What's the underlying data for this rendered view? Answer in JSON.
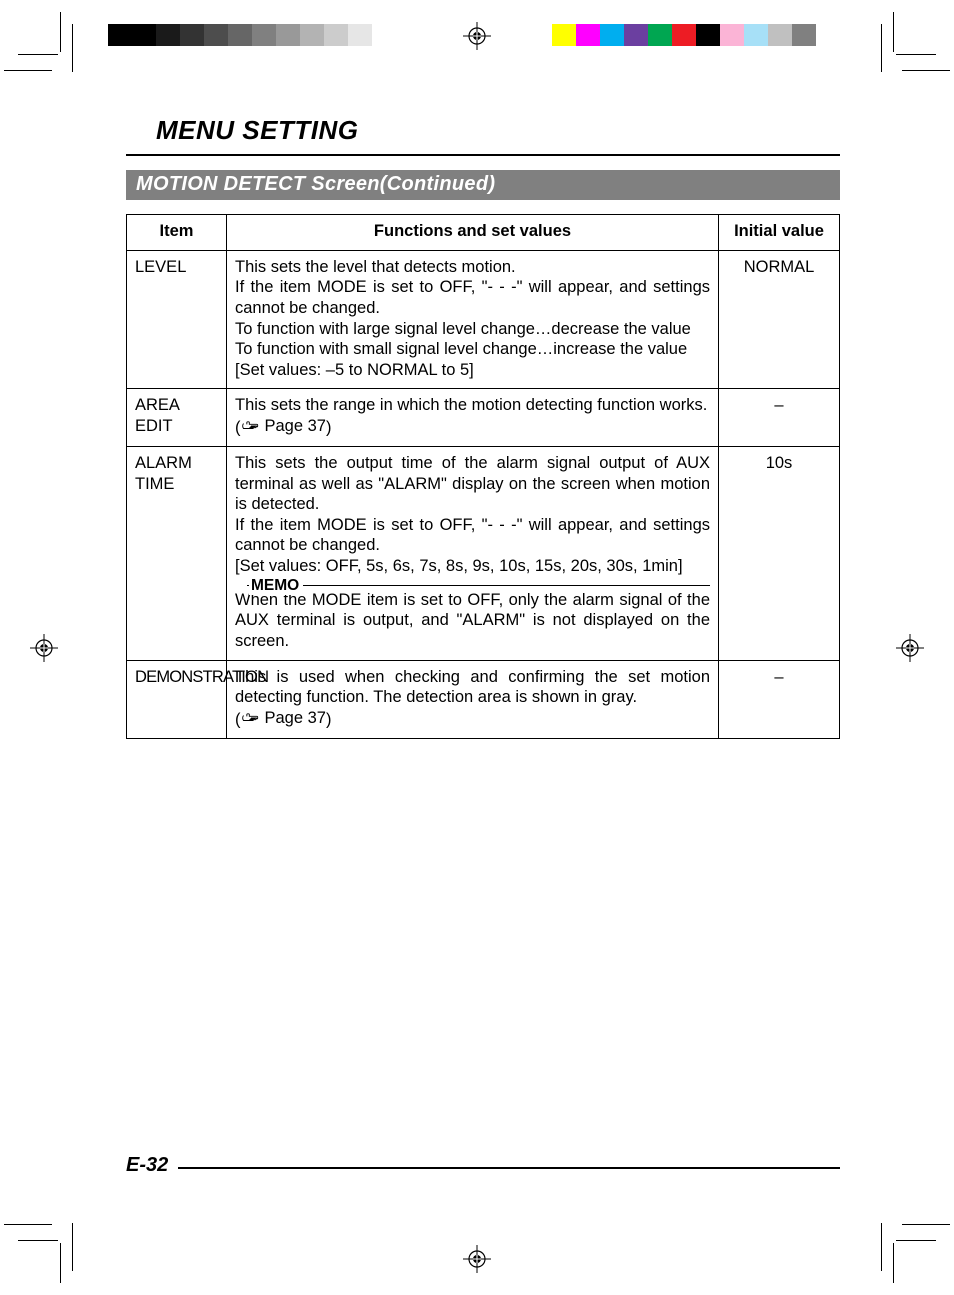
{
  "header": {
    "title": "MENU SETTING"
  },
  "section": {
    "title": "MOTION DETECT Screen(Continued)"
  },
  "table": {
    "columns": [
      "Item",
      "Functions and set values",
      "Initial value"
    ],
    "rows": [
      {
        "item": "LEVEL",
        "func_lines": [
          "This sets the level that detects motion.",
          "If the item MODE is set to OFF, \"- - -\" will appear, and settings cannot be changed.",
          "To function with large signal level change…decrease the value",
          "To function with small signal level change…increase  the value",
          "[Set values: –5 to NORMAL to 5]"
        ],
        "initial": "NORMAL"
      },
      {
        "item": "AREA EDIT",
        "func_lines": [
          "This sets the range in which the motion detecting function works."
        ],
        "page_ref": "Page 37",
        "initial": "–"
      },
      {
        "item": "ALARM TIME",
        "func_lines": [
          "This sets the output time of the alarm signal output of AUX terminal as well as \"ALARM\" display on the screen when motion is detected.",
          "If the item MODE is set to OFF, \"- - -\" will appear, and settings cannot be changed.",
          "[Set values: OFF, 5s, 6s, 7s, 8s, 9s, 10s, 15s, 20s, 30s, 1min]"
        ],
        "memo_label": "MEMO",
        "memo_text": "When the MODE item is set to OFF, only the alarm signal of the AUX terminal is output, and \"ALARM\" is not displayed on the screen.",
        "initial": "10s"
      },
      {
        "item": "DEMONSTRATION",
        "func_lines": [
          "This is used when checking and confirming the set motion detecting function. The detection area is shown in gray."
        ],
        "page_ref": "Page 37",
        "initial": "–"
      }
    ]
  },
  "footer": {
    "page_number": "E-32"
  },
  "colors": {
    "section_bg": "#808080",
    "section_fg": "#ffffff",
    "border": "#000000",
    "text": "#000000",
    "swatches_gray": [
      "#000000",
      "#000000",
      "#1a1a1a",
      "#333333",
      "#4d4d4d",
      "#666666",
      "#808080",
      "#999999",
      "#b3b3b3",
      "#cccccc",
      "#e6e6e6",
      "#ffffff"
    ],
    "swatches_color": [
      "#ffff00",
      "#ff00ff",
      "#00aeef",
      "#6b3fa0",
      "#00a651",
      "#ed1c24",
      "#000000",
      "#fbb4d6",
      "#a7e0f7",
      "#c0c0c0",
      "#808080",
      "#ffffff"
    ]
  }
}
